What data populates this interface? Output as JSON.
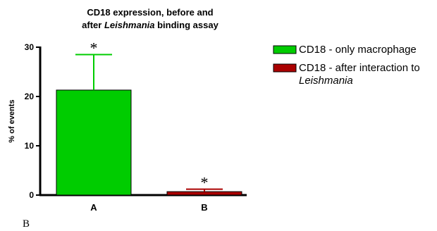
{
  "chart_data": {
    "type": "bar",
    "title_parts": [
      {
        "text": "CD18 expression, before and",
        "italic": false
      },
      {
        "text": "after ",
        "italic": false
      },
      {
        "text": "Leishmania",
        "italic": true
      },
      {
        "text": " binding assay",
        "italic": false
      }
    ],
    "ylabel": "% of events",
    "xlabel": "",
    "ylim": [
      0,
      30
    ],
    "yticks": [
      0,
      10,
      20,
      30
    ],
    "categories": [
      "A",
      "B"
    ],
    "values": [
      21.3,
      0.7
    ],
    "errors": [
      7.2,
      0.5
    ],
    "significance": [
      "*",
      "*"
    ],
    "colors": [
      "#00cc00",
      "#aa0000"
    ],
    "legend": {
      "position": "right",
      "entries": [
        {
          "label": "CD18 - only macrophage",
          "label_line2": "",
          "color": "#00cc00"
        },
        {
          "label": "CD18 - after interaction to",
          "label_line2": "Leishmania",
          "color": "#aa0000"
        }
      ]
    },
    "panel_label": "B"
  }
}
